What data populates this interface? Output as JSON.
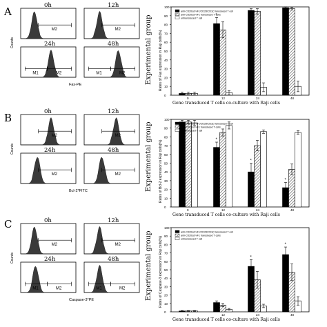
{
  "chart_data": [
    {
      "panel": "A",
      "type": "histogram",
      "timepoints": [
        "0h",
        "12h",
        "24h",
        "48h"
      ],
      "y_axis_label": "Counts",
      "x_axis_label": "Fas-PE",
      "gates": [
        [
          "M2"
        ],
        [
          "M2"
        ],
        [
          "M1",
          "M2"
        ],
        [
          "M1",
          "M2"
        ]
      ],
      "peak_positions": [
        0.25,
        0.28,
        0.55,
        0.62
      ]
    },
    {
      "panel": "A",
      "type": "bar",
      "ylabel": "Rates of Fas expression in Raji cells(%)",
      "xlabel": "Gene transduced T cells co-culture with Raji cells",
      "categories": [
        "0",
        "12",
        "24",
        "48"
      ],
      "ylim": [
        0,
        100
      ],
      "yticks": [
        0,
        10,
        20,
        30,
        40,
        50,
        60,
        70,
        80,
        90,
        100
      ],
      "series": [
        {
          "name": "anti-CD20scFvFc/CD28/CD3ζ transduced T cell",
          "fill": "black",
          "values": [
            2,
            81,
            96,
            99
          ],
          "errors": [
            1.5,
            7,
            2,
            1
          ]
        },
        {
          "name": "anti-CD20scFvFc transduced T cells",
          "fill": "hatch",
          "values": [
            2,
            74,
            95,
            98
          ],
          "errors": [
            1.5,
            9,
            3,
            1.5
          ]
        },
        {
          "name": "untransduced T cell",
          "fill": "white",
          "values": [
            2,
            3,
            9,
            10
          ],
          "errors": [
            1.5,
            2,
            5,
            6
          ]
        }
      ],
      "star_categories": [
        1
      ]
    },
    {
      "panel": "B",
      "type": "histogram",
      "timepoints": [
        "0h",
        "12h",
        "24h",
        "48h"
      ],
      "y_axis_label": "Counts",
      "x_axis_label": "Bcl-2*FITC",
      "gates": [
        [
          "M2"
        ],
        [
          "M2"
        ],
        [
          "M2"
        ],
        [
          "M2"
        ]
      ],
      "peak_positions": [
        0.55,
        0.58,
        0.3,
        0.32
      ]
    },
    {
      "panel": "B",
      "type": "bar",
      "ylabel": "Rates of Bcl-2 expression in Raji cells(%)",
      "xlabel": "Gene transduced T cells co-culture with Raji cells",
      "categories": [
        "0",
        "12",
        "24",
        "48"
      ],
      "ylim": [
        0,
        100
      ],
      "yticks": [
        0,
        10,
        20,
        30,
        40,
        50,
        60,
        70,
        80,
        90,
        100
      ],
      "series": [
        {
          "name": "anti-CD20scFvFc/CD28/CD3ζ transduced T cell",
          "fill": "black",
          "values": [
            97,
            68,
            40,
            22
          ],
          "errors": [
            2,
            6,
            10,
            6
          ]
        },
        {
          "name": "anti-CD20scFvFc transduced T cells",
          "fill": "hatch",
          "values": [
            97,
            85,
            70,
            43
          ],
          "errors": [
            2,
            4,
            6,
            6
          ]
        },
        {
          "name": "untransduced T cell",
          "fill": "white",
          "values": [
            96,
            93,
            86,
            85
          ],
          "errors": [
            3,
            4,
            2,
            2
          ]
        }
      ],
      "star_categories": [
        1,
        2,
        3
      ]
    },
    {
      "panel": "C",
      "type": "histogram",
      "timepoints": [
        "0h",
        "12h",
        "24h",
        "48h"
      ],
      "y_axis_label": "Counts",
      "x_axis_label": "Caspase-3*PE",
      "gates": [
        [
          "M2"
        ],
        [
          "M2"
        ],
        [
          "M1",
          "M2"
        ],
        [
          "M1",
          "M2"
        ]
      ],
      "peak_positions": [
        0.25,
        0.28,
        0.27,
        0.28
      ]
    },
    {
      "panel": "C",
      "type": "bar",
      "ylabel": "Rates of Caspase-3 expression in Raji cells(%)",
      "xlabel": "Gene transduced T cells co-culture with Raji cells",
      "categories": [
        "0",
        "12",
        "24",
        "48"
      ],
      "ylim": [
        0,
        100
      ],
      "yticks": [
        0,
        10,
        20,
        30,
        40,
        50,
        60,
        70,
        80,
        90,
        100
      ],
      "series": [
        {
          "name": "anti-CD20scFvFc/CD28/CD3ζ transduced T cell",
          "fill": "black",
          "values": [
            1,
            11,
            54,
            68
          ],
          "errors": [
            0.5,
            2,
            8,
            9
          ]
        },
        {
          "name": "anti-CD20scFvFc transduced T cells",
          "fill": "hatch",
          "values": [
            1,
            8,
            38,
            47
          ],
          "errors": [
            0.5,
            2,
            10,
            10
          ]
        },
        {
          "name": "untransduced T cell",
          "fill": "white",
          "values": [
            1,
            3,
            7,
            13
          ],
          "errors": [
            0.5,
            1,
            2,
            5
          ]
        }
      ],
      "star_categories": [
        2,
        3
      ]
    }
  ],
  "side_label": "Experimental group",
  "panel_letters": [
    "A",
    "B",
    "C"
  ]
}
